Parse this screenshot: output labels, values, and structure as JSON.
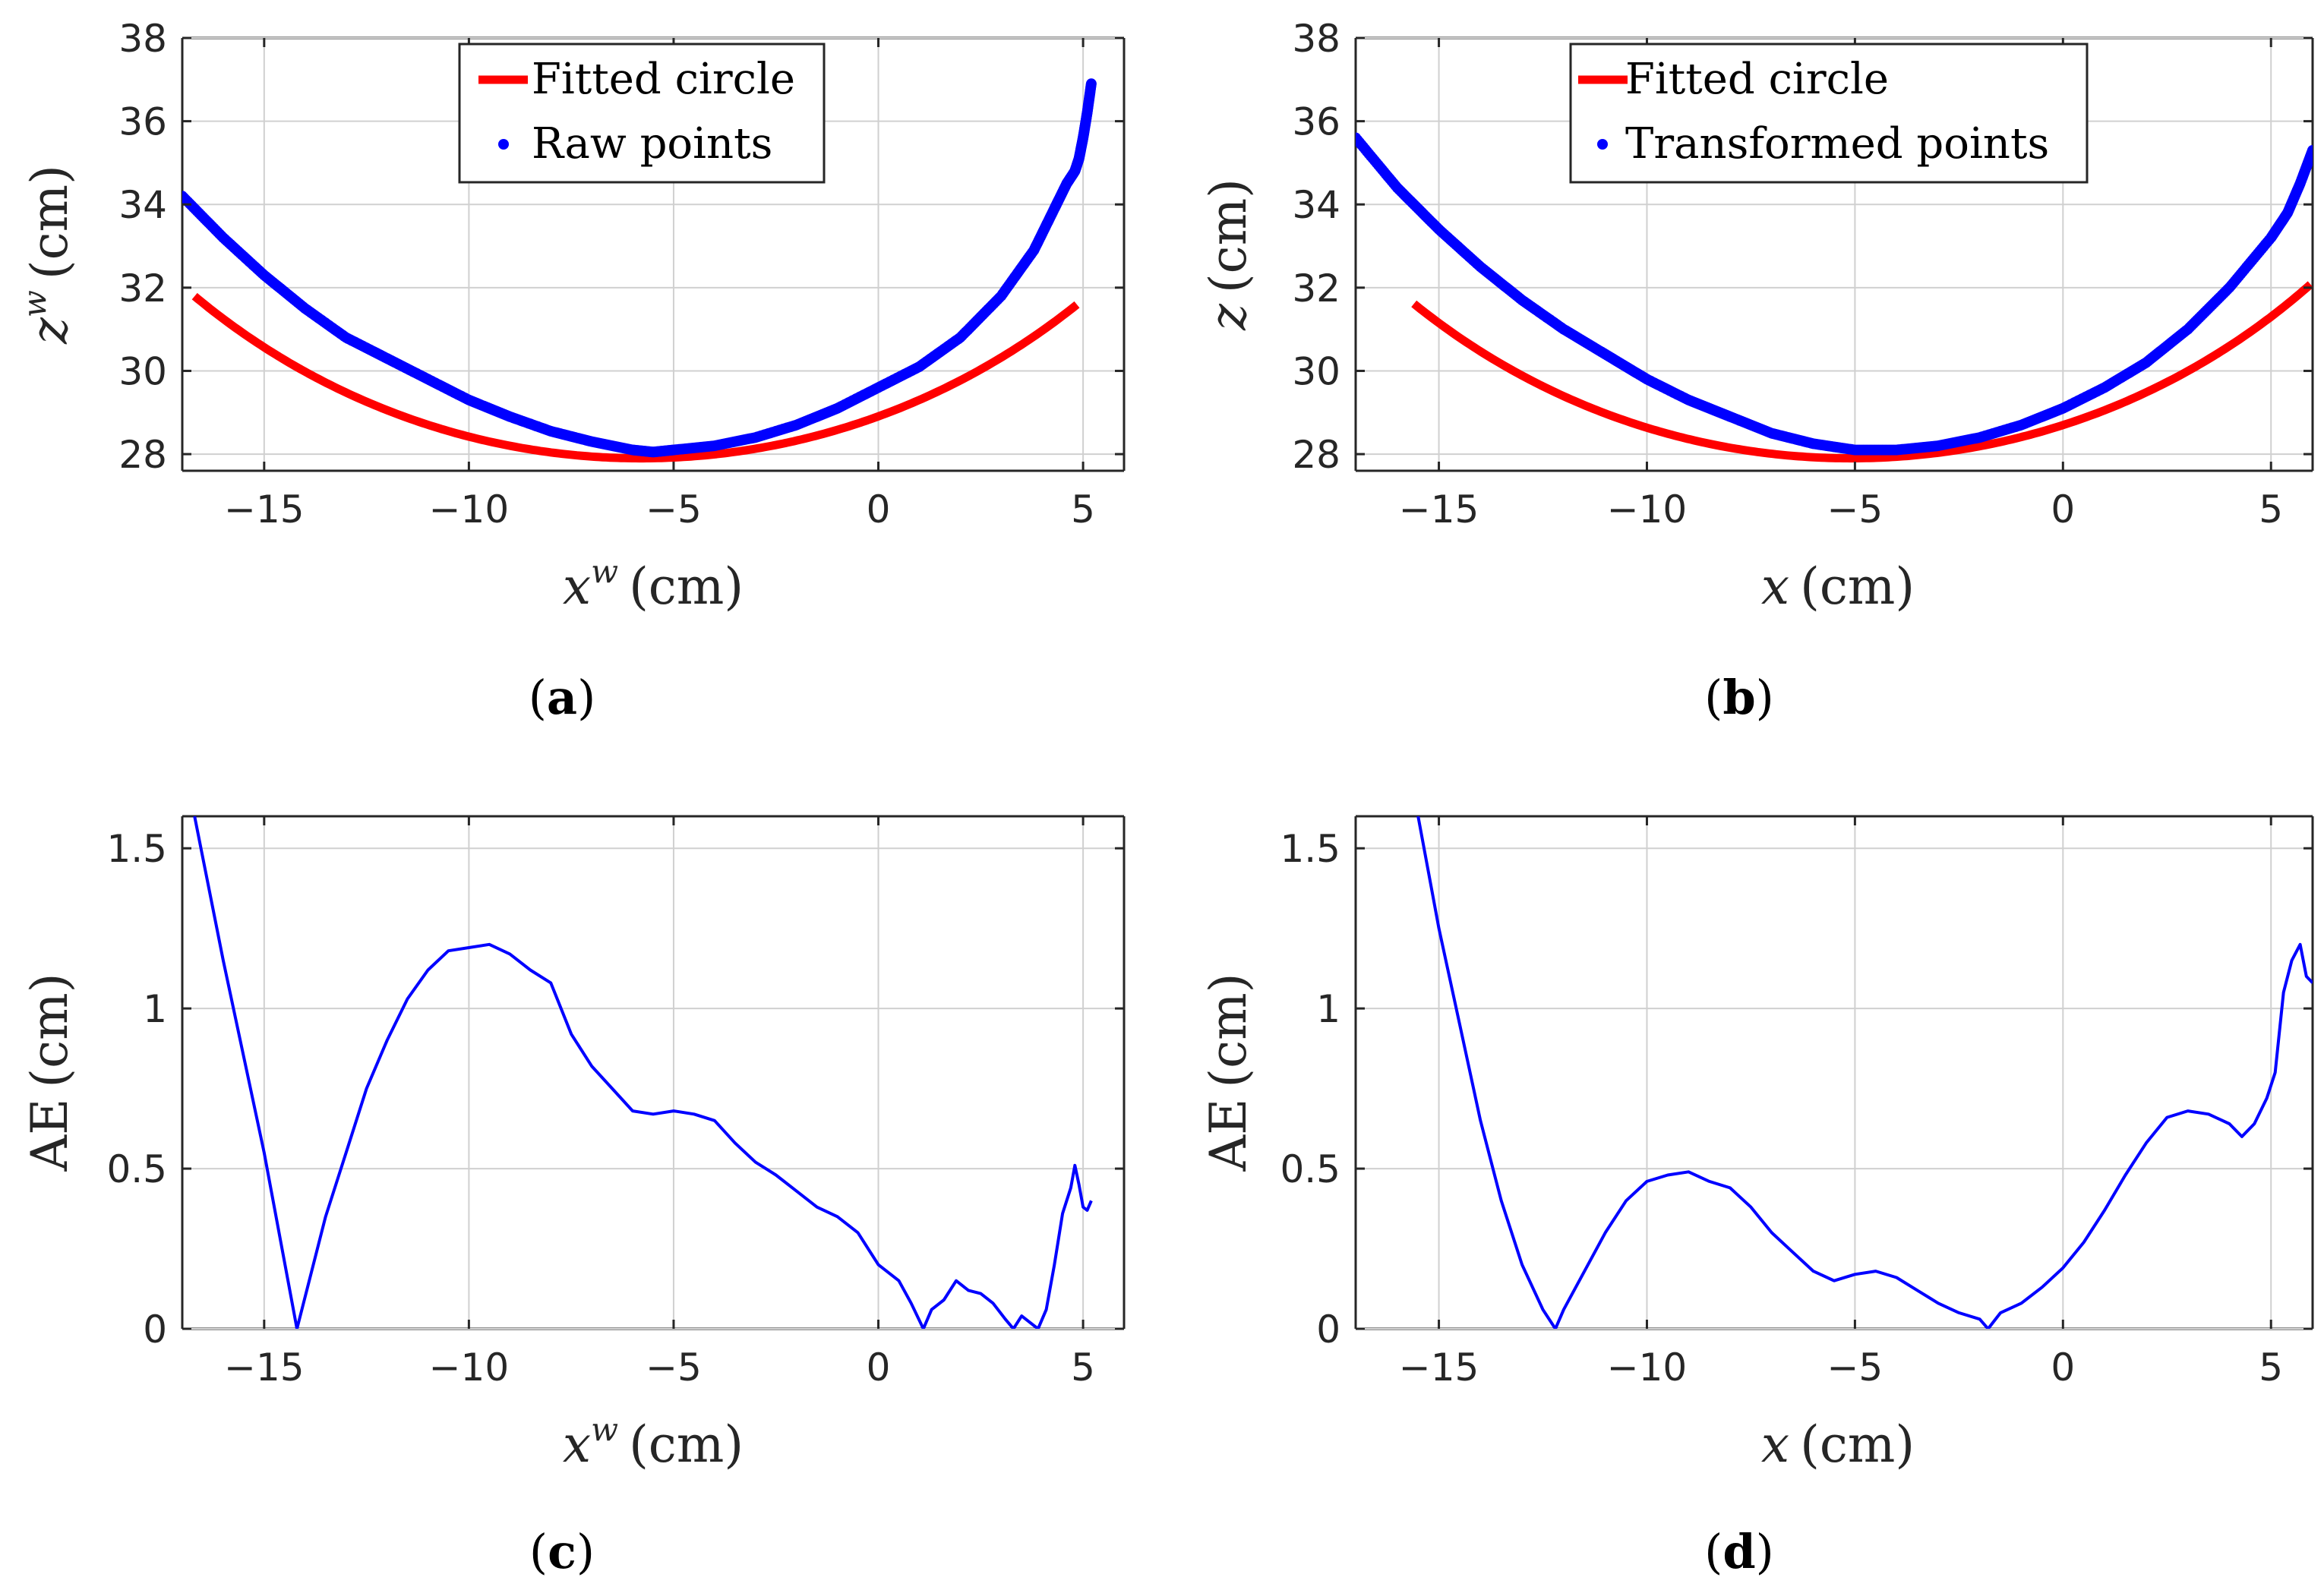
{
  "colors": {
    "circle": "#ff0000",
    "points": "#0000ff",
    "ae_line": "#0000ff",
    "grid": "#d0d0d0",
    "axes": "#262626"
  },
  "chart_data": [
    {
      "id": "a",
      "type": "line",
      "caption": "a",
      "xlabel": {
        "var": "x",
        "sup": "w",
        "unit": "(cm)"
      },
      "ylabel": {
        "var": "z",
        "sup": "w",
        "unit": "(cm)"
      },
      "xlim": [
        -17,
        6
      ],
      "ylim": [
        27.6,
        38
      ],
      "xticks": [
        -15,
        -10,
        -5,
        0,
        5
      ],
      "yticks": [
        28,
        30,
        32,
        34,
        36,
        38
      ],
      "grid": true,
      "legend": {
        "placement": "top-center"
      },
      "series": [
        {
          "name": "Fitted circle",
          "style": "line",
          "color": "#ff0000",
          "circle": {
            "xc": -5.8,
            "zc": 45.1,
            "r": 17.2
          },
          "x_range": [
            -16.7,
            4.85
          ]
        },
        {
          "name": "Raw points",
          "style": "dots",
          "color": "#0000ff",
          "x": [
            -17,
            -16,
            -15,
            -14,
            -13,
            -12,
            -11,
            -10,
            -9,
            -8,
            -7,
            -6,
            -5.5,
            -5,
            -4,
            -3,
            -2,
            -1,
            0,
            1,
            2,
            3,
            3.8,
            4.3,
            4.6,
            4.8,
            4.9,
            5.0,
            5.1,
            5.2
          ],
          "y": [
            34.2,
            33.2,
            32.3,
            31.5,
            30.8,
            30.3,
            29.8,
            29.3,
            28.9,
            28.55,
            28.3,
            28.1,
            28.05,
            28.1,
            28.2,
            28.4,
            28.7,
            29.1,
            29.6,
            30.1,
            30.8,
            31.8,
            32.9,
            33.9,
            34.5,
            34.8,
            35.1,
            35.6,
            36.2,
            36.9
          ]
        }
      ]
    },
    {
      "id": "b",
      "type": "line",
      "caption": "b",
      "xlabel": {
        "var": "x",
        "sup": "",
        "unit": "(cm)"
      },
      "ylabel": {
        "var": "z",
        "sup": "",
        "unit": "(cm)"
      },
      "xlim": [
        -17,
        6
      ],
      "ylim": [
        27.6,
        38
      ],
      "xticks": [
        -15,
        -10,
        -5,
        0,
        5
      ],
      "yticks": [
        28,
        30,
        32,
        34,
        36,
        38
      ],
      "grid": true,
      "legend": {
        "placement": "top-center"
      },
      "series": [
        {
          "name": "Fitted circle",
          "style": "line",
          "color": "#ff0000",
          "circle": {
            "xc": -5.1,
            "zc": 44.6,
            "r": 16.7
          },
          "x_range": [
            -15.6,
            5.95
          ]
        },
        {
          "name": "Transformed points",
          "style": "dots",
          "color": "#0000ff",
          "x": [
            -17,
            -16,
            -15,
            -14,
            -13,
            -12,
            -11,
            -10,
            -9,
            -8,
            -7,
            -6,
            -5,
            -4,
            -3,
            -2,
            -1,
            0,
            1,
            2,
            3,
            4,
            5,
            5.4,
            5.7,
            6.0
          ],
          "y": [
            35.6,
            34.4,
            33.4,
            32.5,
            31.7,
            31.0,
            30.4,
            29.8,
            29.3,
            28.9,
            28.5,
            28.25,
            28.1,
            28.1,
            28.2,
            28.4,
            28.7,
            29.1,
            29.6,
            30.2,
            31.0,
            32.0,
            33.2,
            33.8,
            34.5,
            35.3
          ]
        }
      ]
    },
    {
      "id": "c",
      "type": "line",
      "caption": "c",
      "xlabel": {
        "var": "x",
        "sup": "w",
        "unit": "(cm)"
      },
      "ylabel": {
        "var": "AE",
        "sup": "",
        "unit": "(cm)"
      },
      "xlim": [
        -17,
        6
      ],
      "ylim": [
        0,
        1.6
      ],
      "xticks": [
        -15,
        -10,
        -5,
        0,
        5
      ],
      "yticks": [
        0,
        0.5,
        1,
        1.5
      ],
      "grid": true,
      "series": [
        {
          "style": "line",
          "color": "#0000ff",
          "x": [
            -16.7,
            -16,
            -15,
            -14.2,
            -13.5,
            -13,
            -12.5,
            -12,
            -11.5,
            -11,
            -10.5,
            -10,
            -9.5,
            -9,
            -8.5,
            -8,
            -7.5,
            -7,
            -6.5,
            -6,
            -5.5,
            -5,
            -4.5,
            -4,
            -3.5,
            -3,
            -2.5,
            -2,
            -1.5,
            -1,
            -0.5,
            0,
            0.5,
            0.8,
            1.1,
            1.3,
            1.6,
            1.9,
            2.2,
            2.5,
            2.8,
            3.1,
            3.3,
            3.5,
            3.7,
            3.9,
            4.1,
            4.3,
            4.5,
            4.7,
            4.8,
            4.9,
            5.0,
            5.1,
            5.2
          ],
          "y": [
            1.6,
            1.15,
            0.55,
            0.0,
            0.35,
            0.55,
            0.75,
            0.9,
            1.03,
            1.12,
            1.18,
            1.19,
            1.2,
            1.17,
            1.12,
            1.08,
            0.92,
            0.82,
            0.75,
            0.68,
            0.67,
            0.68,
            0.67,
            0.65,
            0.58,
            0.52,
            0.48,
            0.43,
            0.38,
            0.35,
            0.3,
            0.2,
            0.15,
            0.08,
            0.0,
            0.06,
            0.09,
            0.15,
            0.12,
            0.11,
            0.08,
            0.03,
            0.0,
            0.04,
            0.02,
            0.0,
            0.06,
            0.2,
            0.36,
            0.44,
            0.51,
            0.45,
            0.38,
            0.37,
            0.4
          ]
        }
      ]
    },
    {
      "id": "d",
      "type": "line",
      "caption": "d",
      "xlabel": {
        "var": "x",
        "sup": "",
        "unit": "(cm)"
      },
      "ylabel": {
        "var": "AE",
        "sup": "",
        "unit": "(cm)"
      },
      "xlim": [
        -17,
        6
      ],
      "ylim": [
        0,
        1.6
      ],
      "xticks": [
        -15,
        -10,
        -5,
        0,
        5
      ],
      "yticks": [
        0,
        0.5,
        1,
        1.5
      ],
      "grid": true,
      "series": [
        {
          "style": "line",
          "color": "#0000ff",
          "x": [
            -15.5,
            -15,
            -14.5,
            -14,
            -13.5,
            -13,
            -12.5,
            -12.2,
            -12,
            -11.5,
            -11,
            -10.5,
            -10,
            -9.5,
            -9,
            -8.5,
            -8,
            -7.5,
            -7,
            -6.5,
            -6,
            -5.5,
            -5,
            -4.5,
            -4,
            -3.5,
            -3,
            -2.5,
            -2,
            -1.8,
            -1.5,
            -1,
            -0.5,
            0,
            0.5,
            1,
            1.5,
            2,
            2.5,
            3,
            3.5,
            4,
            4.3,
            4.6,
            4.9,
            5.1,
            5.3,
            5.5,
            5.7,
            5.85,
            6.0
          ],
          "y": [
            1.6,
            1.25,
            0.95,
            0.65,
            0.4,
            0.2,
            0.06,
            0.0,
            0.06,
            0.18,
            0.3,
            0.4,
            0.46,
            0.48,
            0.49,
            0.46,
            0.44,
            0.38,
            0.3,
            0.24,
            0.18,
            0.15,
            0.17,
            0.18,
            0.16,
            0.12,
            0.08,
            0.05,
            0.03,
            0.0,
            0.05,
            0.08,
            0.13,
            0.19,
            0.27,
            0.37,
            0.48,
            0.58,
            0.66,
            0.68,
            0.67,
            0.64,
            0.6,
            0.64,
            0.72,
            0.8,
            1.05,
            1.15,
            1.2,
            1.1,
            1.08
          ]
        }
      ]
    }
  ]
}
